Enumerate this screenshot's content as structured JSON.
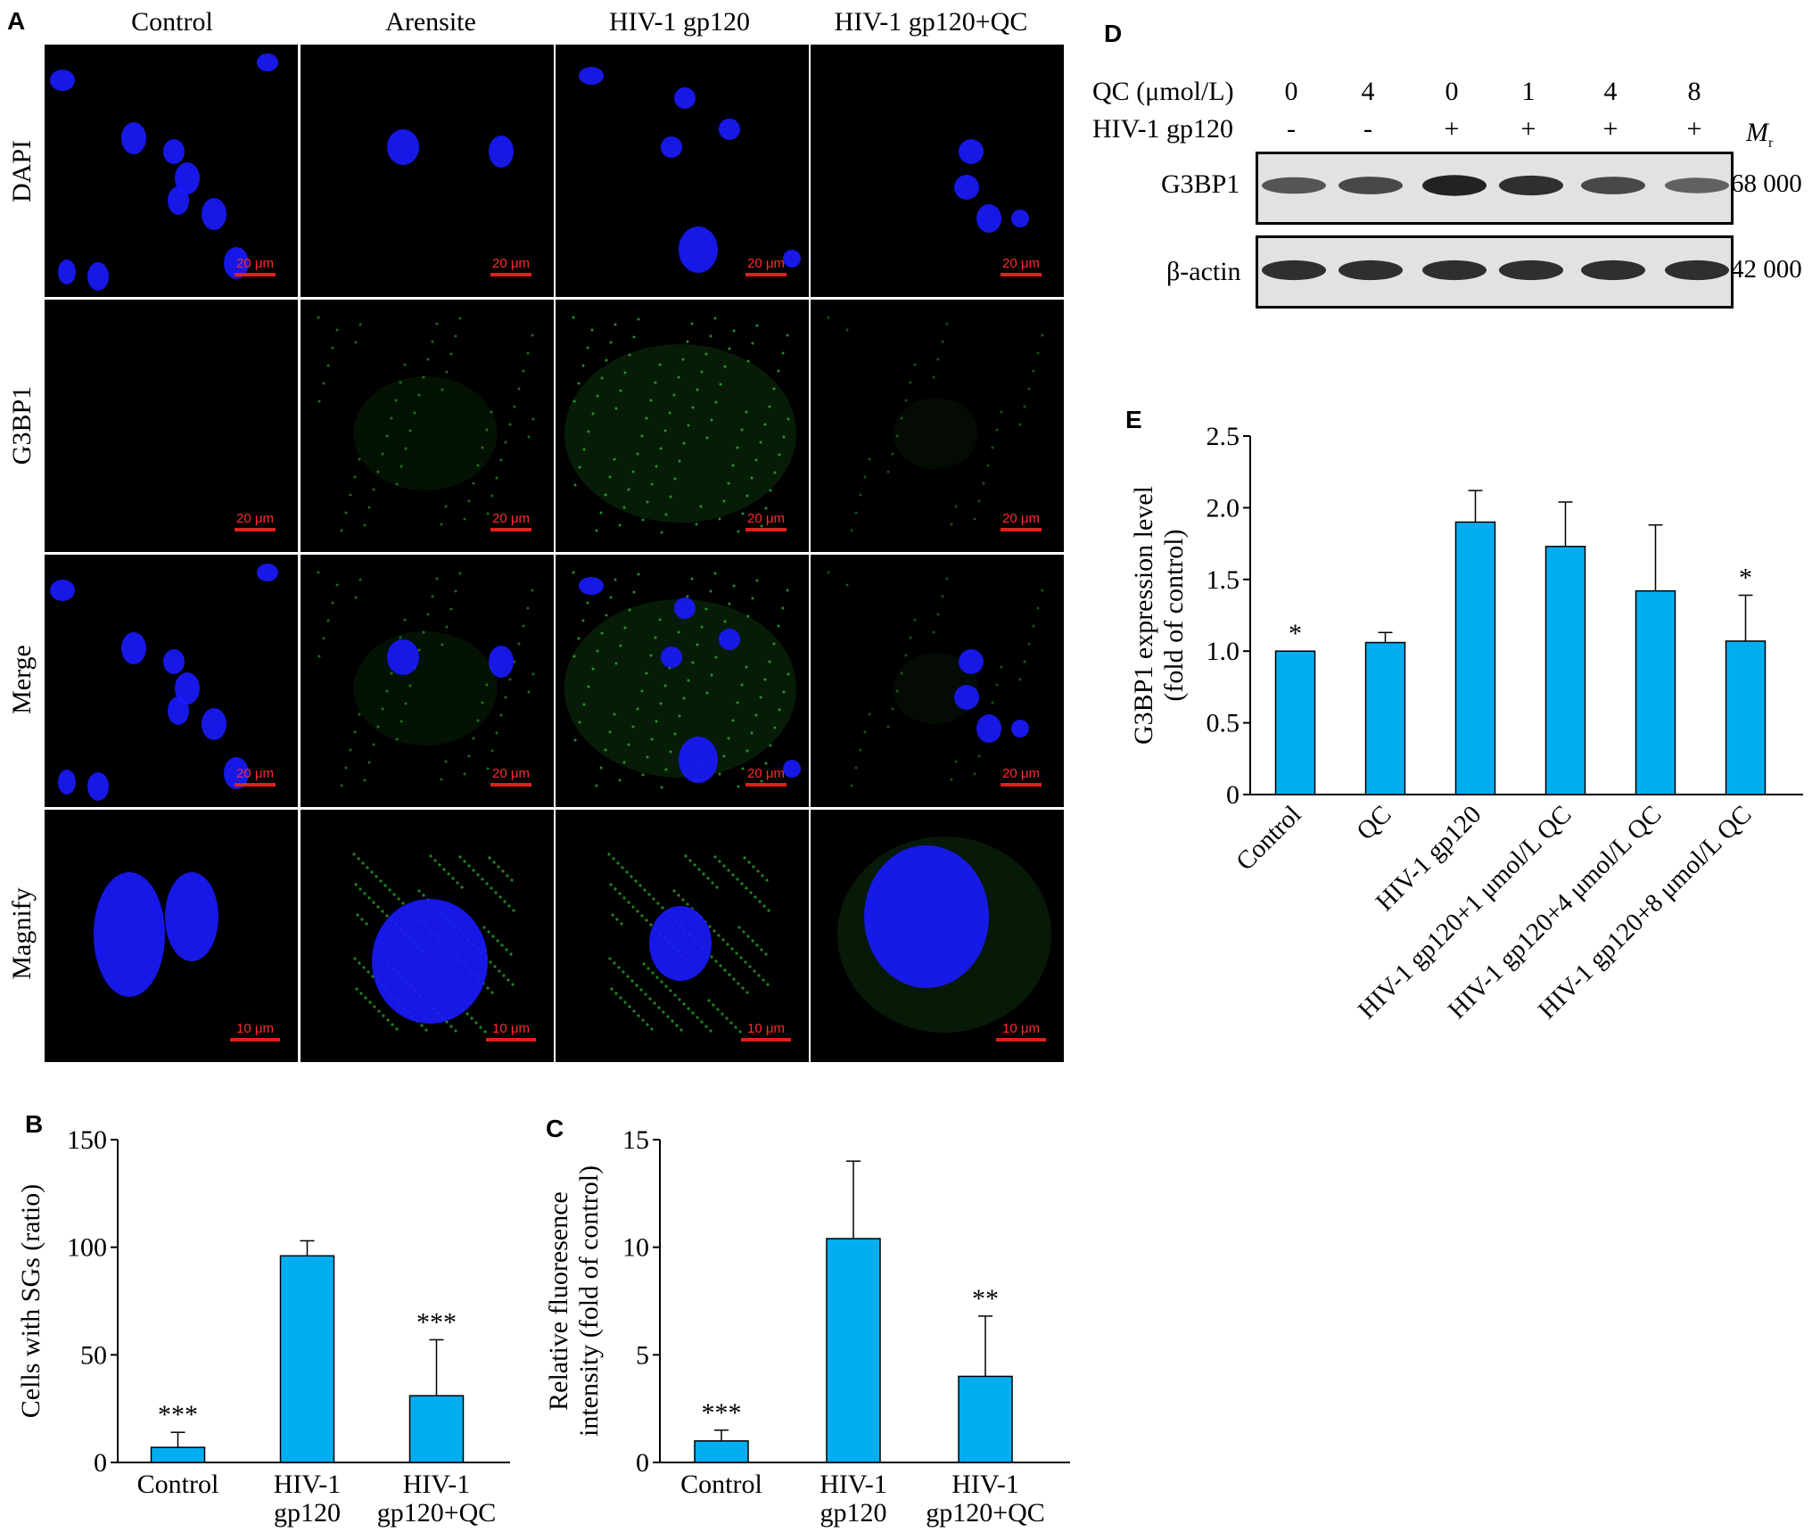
{
  "panels": {
    "a": "A",
    "b": "B",
    "c": "C",
    "d": "D",
    "e": "E"
  },
  "panel_a": {
    "columns": [
      "Control",
      "Arensite",
      "HIV-1 gp120",
      "HIV-1 gp120+QC"
    ],
    "rows": [
      "DAPI",
      "G3BP1",
      "Merge",
      "Magnify"
    ],
    "scale_20": "20 μm",
    "scale_10": "10 μm",
    "colors": {
      "dapi": "#1a1aff",
      "g3bp1": "#2fbf2f",
      "scale": "#e0201c"
    }
  },
  "panel_d": {
    "qc_label": "QC (μmol/L)",
    "gp120_label": "HIV-1 gp120",
    "qc_values": [
      "0",
      "4",
      "0",
      "1",
      "4",
      "8"
    ],
    "gp120_values": [
      "-",
      "-",
      "+",
      "+",
      "+",
      "+"
    ],
    "mr_label": "M",
    "mr_sub": "r",
    "bands": [
      {
        "name": "G3BP1",
        "mr": "68 000",
        "intensity": [
          0.55,
          0.65,
          0.95,
          0.85,
          0.65,
          0.45
        ]
      },
      {
        "name": "β-actin",
        "mr": "42 000",
        "intensity": [
          0.85,
          0.85,
          0.85,
          0.85,
          0.85,
          0.85
        ]
      }
    ]
  },
  "chart_data": [
    {
      "id": "B",
      "type": "bar",
      "categories": [
        [
          "Control"
        ],
        [
          "HIV-1",
          "gp120"
        ],
        [
          "HIV-1",
          "gp120+QC"
        ]
      ],
      "values": [
        7,
        96,
        31
      ],
      "errors": [
        7,
        7,
        26
      ],
      "significance": [
        "***",
        "",
        "***"
      ],
      "ylabel": "Cells with SGs (ratio)",
      "ylim": [
        0,
        150
      ],
      "yticks": [
        "0",
        "50",
        "100",
        "150"
      ],
      "bar_color": "#00aeef"
    },
    {
      "id": "C",
      "type": "bar",
      "categories": [
        [
          "Control"
        ],
        [
          "HIV-1",
          "gp120"
        ],
        [
          "HIV-1",
          "gp120+QC"
        ]
      ],
      "values": [
        1,
        10.4,
        4
      ],
      "errors": [
        0.5,
        3.6,
        2.8
      ],
      "significance": [
        "***",
        "",
        "**"
      ],
      "ylabel": [
        "Relative fluoresence",
        "intensity (fold of control)"
      ],
      "ylim": [
        0,
        15
      ],
      "yticks": [
        "0",
        "5",
        "10",
        "15"
      ],
      "bar_color": "#00aeef"
    },
    {
      "id": "E",
      "type": "bar",
      "categories": [
        "Control",
        "QC",
        "HIV-1 gp120",
        "HIV-1 gp120+1 μmol/L QC",
        "HIV-1 gp120+4 μmol/L QC",
        "HIV-1 gp120+8 μmol/L QC"
      ],
      "values": [
        1.0,
        1.06,
        1.9,
        1.73,
        1.42,
        1.07
      ],
      "errors": [
        0,
        0.07,
        0.22,
        0.31,
        0.46,
        0.32
      ],
      "significance": [
        "*",
        "",
        "",
        "",
        "",
        "*"
      ],
      "ylabel": [
        "G3BP1 expression level",
        "(fold of control)"
      ],
      "ylim": [
        0,
        2.5
      ],
      "yticks": [
        "0",
        "0.5",
        "1.0",
        "1.5",
        "2.0",
        "2.5"
      ],
      "bar_color": "#00aeef"
    }
  ]
}
